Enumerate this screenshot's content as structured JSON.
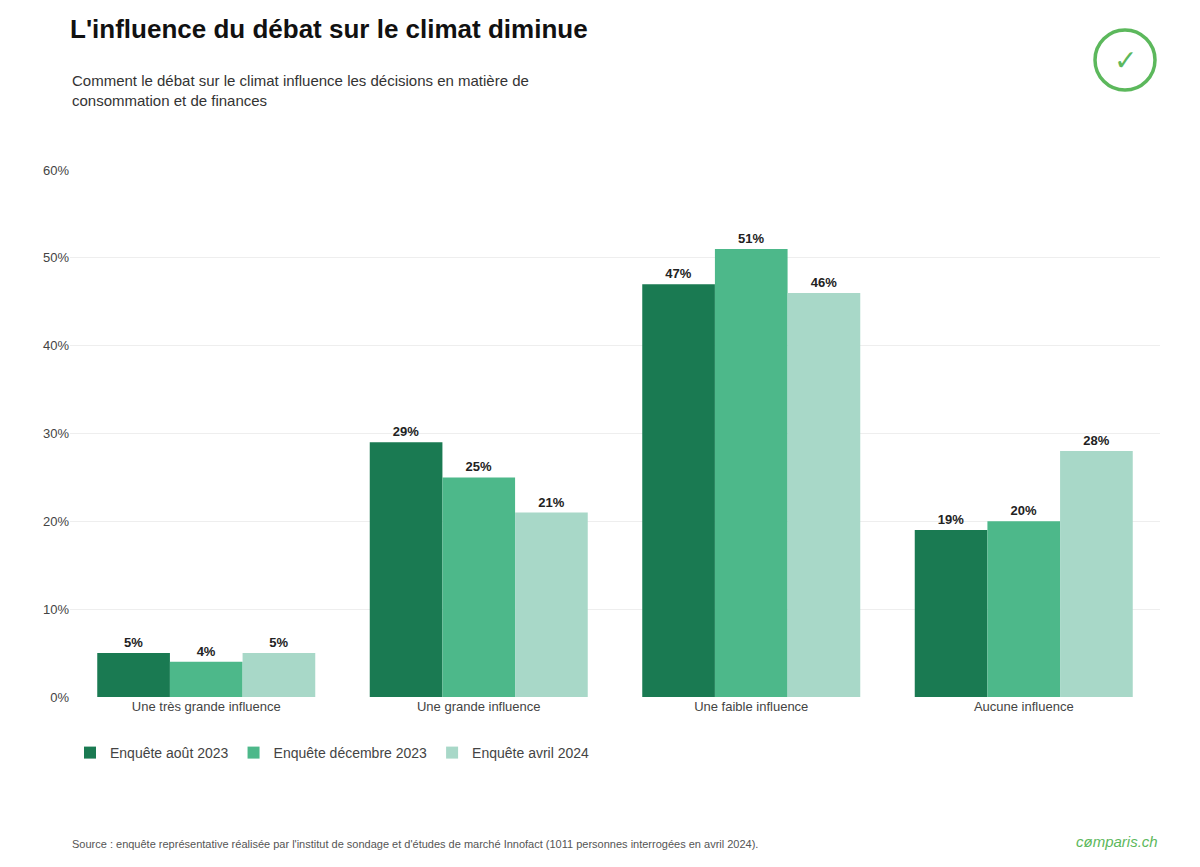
{
  "chart_data": {
    "type": "bar",
    "title": "L'influence du débat sur le climat diminue",
    "subtitle": "Comment le débat sur le climat influence les décisions en matière de\nconsommation et de finances",
    "categories": [
      "Une très grande influence",
      "Une grande influence",
      "Une faible influence",
      "Aucune influence"
    ],
    "series": [
      {
        "name": "Enquête août 2023",
        "color": "#1a7a52",
        "values": [
          5,
          29,
          47,
          19
        ],
        "value_labels": [
          "5%",
          "29%",
          "47%",
          "19%"
        ]
      },
      {
        "name": "Enquête décembre 2023",
        "color": "#4db88a",
        "values": [
          4,
          25,
          51,
          20
        ],
        "value_labels": [
          "4%",
          "25%",
          "51%",
          "20%"
        ]
      },
      {
        "name": "Enquête avril 2024",
        "color": "#a8d8c8",
        "values": [
          5,
          21,
          46,
          28
        ],
        "value_labels": [
          "5%",
          "21%",
          "46%",
          "28%"
        ]
      }
    ],
    "ylim": [
      0,
      60
    ],
    "yticks": [
      {
        "value": 0,
        "label": "0%"
      },
      {
        "value": 10,
        "label": "10%"
      },
      {
        "value": 20,
        "label": "20%"
      },
      {
        "value": 30,
        "label": "30%"
      },
      {
        "value": 40,
        "label": "40%"
      },
      {
        "value": 50,
        "label": "50%"
      },
      {
        "value": 60,
        "label": "60%"
      }
    ],
    "grid": true,
    "legend": "bottom",
    "data_labels": true,
    "annotations": [
      "Source : enquête représentative réalisée par l'institut de sondage et d'études de marché Innofact (1011 personnes interrogées en avril 2024).",
      "cømparis.ch",
      "✓"
    ]
  }
}
